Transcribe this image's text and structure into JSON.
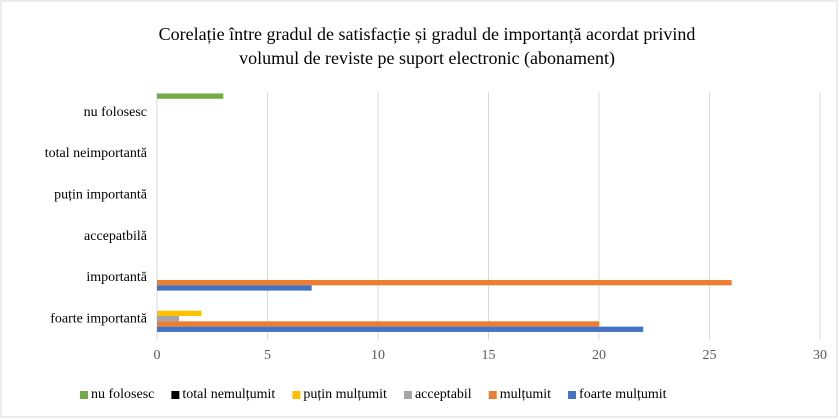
{
  "chart_data": {
    "type": "bar",
    "orientation": "horizontal",
    "title": [
      "Corelație între gradul de satisfacție și gradul de importanță acordat privind",
      "volumul de reviste pe suport electronic (abonament)"
    ],
    "categories": [
      "foarte importantă",
      "importantă",
      "accepatbilă",
      "puțin importantă",
      "total neimportantă",
      "nu folosesc"
    ],
    "series": [
      {
        "name": "nu folosesc",
        "color": "#70ad47",
        "values": [
          0,
          0,
          0,
          0,
          0,
          3
        ]
      },
      {
        "name": "total nemulțumit",
        "color": "#000000",
        "values": [
          0,
          0,
          0,
          0,
          0,
          0
        ]
      },
      {
        "name": "puțin mulțumit",
        "color": "#ffc000",
        "values": [
          2,
          0,
          0,
          0,
          0,
          0
        ]
      },
      {
        "name": "acceptabil",
        "color": "#a5a5a5",
        "values": [
          1,
          0,
          0,
          0,
          0,
          0
        ]
      },
      {
        "name": "mulțumit",
        "color": "#ed7d31",
        "values": [
          20,
          26,
          0,
          0,
          0,
          0
        ]
      },
      {
        "name": "foarte mulțumit",
        "color": "#4472c4",
        "values": [
          22,
          7,
          0,
          0,
          0,
          0
        ]
      }
    ],
    "xlim": [
      0,
      30
    ],
    "xticks": [
      0,
      5,
      10,
      15,
      20,
      25,
      30
    ],
    "grid": true,
    "legend": "bottom"
  }
}
